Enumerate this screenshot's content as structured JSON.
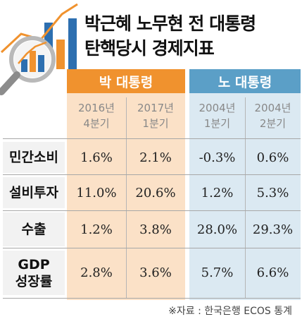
{
  "title": {
    "line1": "박근혜 노무현 전 대통령",
    "line2": "탄핵당시 경제지표"
  },
  "groups": [
    {
      "label": "박 대통령",
      "color": "#f0922e",
      "band": "#fbe1c7"
    },
    {
      "label": "노 대통령",
      "color": "#5b9fc7",
      "band": "#dbe9f2"
    }
  ],
  "periods": [
    {
      "year": "2016년",
      "quarter": "4분기"
    },
    {
      "year": "2017년",
      "quarter": "1분기"
    },
    {
      "year": "2004년",
      "quarter": "1분기"
    },
    {
      "year": "2004년",
      "quarter": "2분기"
    }
  ],
  "rows": [
    {
      "label": "민간소비",
      "label2": "",
      "values": [
        "1.6%",
        "2.1%",
        "-0.3%",
        "0.6%"
      ]
    },
    {
      "label": "설비투자",
      "label2": "",
      "values": [
        "11.0%",
        "20.6%",
        "1.2%",
        "5.3%"
      ]
    },
    {
      "label": "수출",
      "label2": "",
      "values": [
        "1.2%",
        "3.8%",
        "28.0%",
        "29.3%"
      ]
    },
    {
      "label": "GDP",
      "label2": "성장률",
      "values": [
        "2.8%",
        "3.6%",
        "5.7%",
        "6.6%"
      ]
    }
  ],
  "source": "※자료 : 한국은행 ECOS 통계",
  "icons": [
    "magnifier-chart-icon"
  ]
}
